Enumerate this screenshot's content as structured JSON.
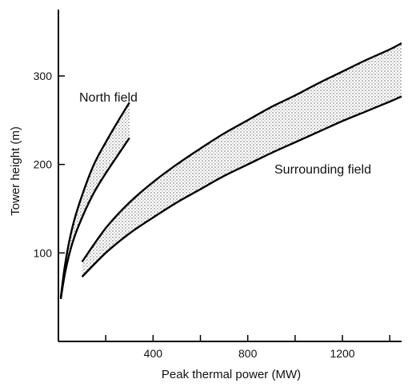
{
  "chart_data": {
    "type": "area",
    "title": "",
    "xlabel": "Peak thermal power (MW)",
    "ylabel": "Tower height (m)",
    "xlim": [
      0,
      1450
    ],
    "ylim": [
      0,
      375
    ],
    "xticks_labeled": [
      400,
      800,
      1200
    ],
    "xticks_minor": [
      200,
      600,
      1000,
      1400
    ],
    "yticks": [
      100,
      200,
      300
    ],
    "grid": false,
    "legend": "none",
    "fill_style": "stippled",
    "annotations": [
      "North field",
      "Surrounding field"
    ],
    "series": [
      {
        "label": "North field",
        "upper": {
          "x": [
            10,
            30,
            60,
            100,
            150,
            200,
            250,
            300
          ],
          "y": [
            50,
            90,
            130,
            165,
            200,
            225,
            248,
            270
          ]
        },
        "lower": {
          "x": [
            10,
            30,
            60,
            100,
            150,
            200,
            250,
            300
          ],
          "y": [
            48,
            80,
            112,
            140,
            168,
            190,
            210,
            230
          ]
        }
      },
      {
        "label": "Surrounding field",
        "upper": {
          "x": [
            100,
            200,
            300,
            400,
            500,
            600,
            700,
            800,
            900,
            1000,
            1100,
            1200,
            1300,
            1400,
            1450
          ],
          "y": [
            90,
            128,
            157,
            180,
            200,
            218,
            235,
            250,
            265,
            278,
            292,
            305,
            318,
            330,
            337
          ]
        },
        "lower": {
          "x": [
            100,
            200,
            300,
            400,
            500,
            600,
            700,
            800,
            900,
            1000,
            1100,
            1200,
            1300,
            1400,
            1450
          ],
          "y": [
            73,
            100,
            122,
            140,
            157,
            172,
            187,
            200,
            213,
            225,
            237,
            249,
            260,
            271,
            277
          ]
        }
      }
    ]
  }
}
